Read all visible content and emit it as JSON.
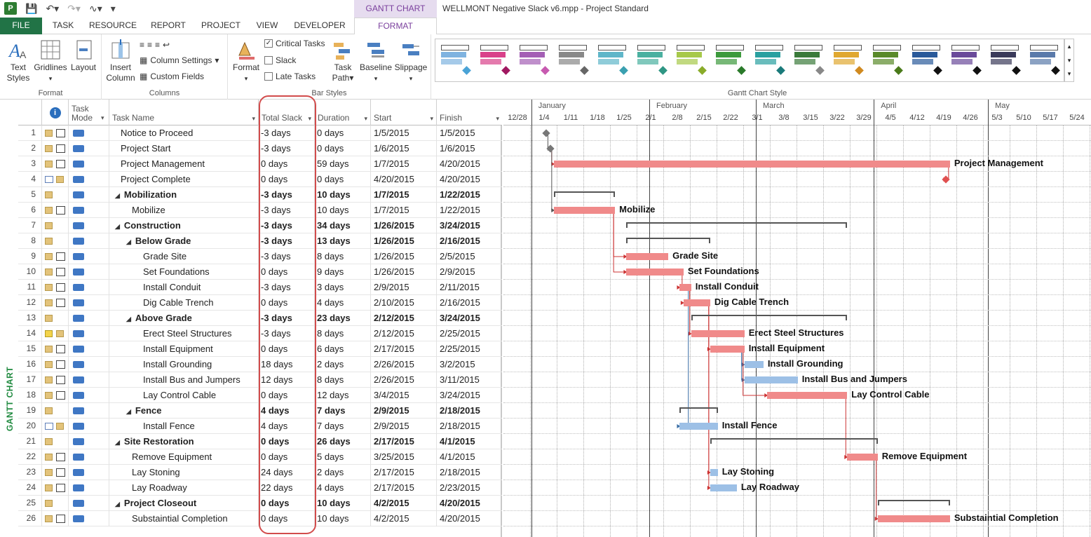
{
  "window": {
    "title": "WELLMONT Negative Slack v6.mpp - Project Standard",
    "context_tab_group": "GANTT CHART TOOLS"
  },
  "quick_access": {
    "app_icon": "P",
    "save_icon": "save-icon",
    "undo_icon": "undo-icon",
    "redo_icon": "redo-icon",
    "baseline_icon": "baseline-icon",
    "customize_icon": "customize-icon"
  },
  "tabs": [
    {
      "label": "FILE"
    },
    {
      "label": "TASK"
    },
    {
      "label": "RESOURCE"
    },
    {
      "label": "REPORT"
    },
    {
      "label": "PROJECT"
    },
    {
      "label": "VIEW"
    },
    {
      "label": "DEVELOPER"
    },
    {
      "label": "FORMAT"
    }
  ],
  "ribbon": {
    "format_group": {
      "label": "Format",
      "text_styles": "Text Styles",
      "gridlines": "Gridlines",
      "layout": "Layout"
    },
    "columns_group": {
      "label": "Columns",
      "insert_column": "Insert Column",
      "column_settings": "Column Settings",
      "custom_fields": "Custom Fields"
    },
    "bar_styles_group": {
      "label": "Bar Styles",
      "format": "Format",
      "critical_tasks": "Critical Tasks",
      "critical_tasks_checked": true,
      "slack": "Slack",
      "slack_checked": false,
      "late_tasks": "Late Tasks",
      "late_tasks_checked": false,
      "task_path": "Task Path",
      "baseline": "Baseline",
      "slippage": "Slippage"
    },
    "gantt_style_group": {
      "label": "Gantt Chart Style",
      "swatches": [
        {
          "color": "#7fb3e0",
          "accent": "#4aa3d6"
        },
        {
          "color": "#d9418a",
          "accent": "#a01860"
        },
        {
          "color": "#a45fb5",
          "accent": "#c75ab0"
        },
        {
          "color": "#888888",
          "accent": "#666666"
        },
        {
          "color": "#5fb6c9",
          "accent": "#3aa0b0"
        },
        {
          "color": "#4ab0a0",
          "accent": "#2f9684"
        },
        {
          "color": "#a7c94a",
          "accent": "#8aac2a"
        },
        {
          "color": "#3d9a3d",
          "accent": "#2a7a2a"
        },
        {
          "color": "#2aa0a0",
          "accent": "#1a7a7a"
        },
        {
          "color": "#3a7a3a",
          "accent": "#888888"
        },
        {
          "color": "#e0a830",
          "accent": "#d08a20"
        },
        {
          "color": "#5a8a2a",
          "accent": "#4a7a1a"
        },
        {
          "color": "#2a5a9a",
          "accent": "#111111"
        },
        {
          "color": "#6a4a9a",
          "accent": "#111111"
        },
        {
          "color": "#3a3a5a",
          "accent": "#111111"
        },
        {
          "color": "#5a7aaa",
          "accent": "#111111"
        }
      ]
    }
  },
  "side_label": "GANTT CHART",
  "grid": {
    "headers": {
      "indicators": "info-icon",
      "mode": "Task Mode",
      "name": "Task Name",
      "slack": "Total Slack",
      "duration": "Duration",
      "start": "Start",
      "finish": "Finish"
    },
    "rows": [
      {
        "id": "1",
        "name": "Notice to Proceed",
        "level": 0,
        "summary": false,
        "slack": "-3 days",
        "duration": "0 days",
        "start": "1/5/2015",
        "finish": "1/5/2015",
        "icons": [
          "note",
          "link"
        ]
      },
      {
        "id": "2",
        "name": "Project Start",
        "level": 0,
        "summary": false,
        "slack": "-3 days",
        "duration": "0 days",
        "start": "1/6/2015",
        "finish": "1/6/2015",
        "icons": [
          "note",
          "link"
        ]
      },
      {
        "id": "3",
        "name": "Project Management",
        "level": 0,
        "summary": false,
        "slack": "0 days",
        "duration": "59 days",
        "start": "1/7/2015",
        "finish": "4/20/2015",
        "icons": [
          "note",
          "link"
        ]
      },
      {
        "id": "4",
        "name": "Project Complete",
        "level": 0,
        "summary": false,
        "slack": "0 days",
        "duration": "0 days",
        "start": "4/20/2015",
        "finish": "4/20/2015",
        "icons": [
          "cal",
          "note"
        ]
      },
      {
        "id": "5",
        "name": "Mobilization",
        "level": 0,
        "summary": true,
        "slack": "-3 days",
        "duration": "10 days",
        "start": "1/7/2015",
        "finish": "1/22/2015",
        "icons": [
          "note"
        ]
      },
      {
        "id": "6",
        "name": "Mobilize",
        "level": 1,
        "summary": false,
        "slack": "-3 days",
        "duration": "10 days",
        "start": "1/7/2015",
        "finish": "1/22/2015",
        "icons": [
          "note",
          "link"
        ]
      },
      {
        "id": "7",
        "name": "Construction",
        "level": 0,
        "summary": true,
        "slack": "-3 days",
        "duration": "34 days",
        "start": "1/26/2015",
        "finish": "3/24/2015",
        "icons": [
          "note"
        ]
      },
      {
        "id": "8",
        "name": "Below Grade",
        "level": 1,
        "summary": true,
        "slack": "-3 days",
        "duration": "13 days",
        "start": "1/26/2015",
        "finish": "2/16/2015",
        "icons": [
          "note"
        ]
      },
      {
        "id": "9",
        "name": "Grade Site",
        "level": 2,
        "summary": false,
        "slack": "-3 days",
        "duration": "8 days",
        "start": "1/26/2015",
        "finish": "2/5/2015",
        "icons": [
          "note",
          "link"
        ]
      },
      {
        "id": "10",
        "name": "Set Foundations",
        "level": 2,
        "summary": false,
        "slack": "0 days",
        "duration": "9 days",
        "start": "1/26/2015",
        "finish": "2/9/2015",
        "icons": [
          "note",
          "link"
        ]
      },
      {
        "id": "11",
        "name": "Install Conduit",
        "level": 2,
        "summary": false,
        "slack": "-3 days",
        "duration": "3 days",
        "start": "2/9/2015",
        "finish": "2/11/2015",
        "icons": [
          "note",
          "link"
        ]
      },
      {
        "id": "12",
        "name": "Dig Cable Trench",
        "level": 2,
        "summary": false,
        "slack": "0 days",
        "duration": "4 days",
        "start": "2/10/2015",
        "finish": "2/16/2015",
        "icons": [
          "note",
          "link"
        ]
      },
      {
        "id": "13",
        "name": "Above Grade",
        "level": 1,
        "summary": true,
        "slack": "-3 days",
        "duration": "23 days",
        "start": "2/12/2015",
        "finish": "3/24/2015",
        "icons": [
          "note"
        ]
      },
      {
        "id": "14",
        "name": "Erect Steel Structures",
        "level": 2,
        "summary": false,
        "slack": "-3 days",
        "duration": "8 days",
        "start": "2/12/2015",
        "finish": "2/25/2015",
        "icons": [
          "warn",
          "note"
        ]
      },
      {
        "id": "15",
        "name": "Install Equipment",
        "level": 2,
        "summary": false,
        "slack": "0 days",
        "duration": "6 days",
        "start": "2/17/2015",
        "finish": "2/25/2015",
        "icons": [
          "note",
          "link"
        ]
      },
      {
        "id": "16",
        "name": "Install Grounding",
        "level": 2,
        "summary": false,
        "slack": "18 days",
        "duration": "2 days",
        "start": "2/26/2015",
        "finish": "3/2/2015",
        "icons": [
          "note",
          "link"
        ]
      },
      {
        "id": "17",
        "name": "Install Bus and Jumpers",
        "level": 2,
        "summary": false,
        "slack": "12 days",
        "duration": "8 days",
        "start": "2/26/2015",
        "finish": "3/11/2015",
        "icons": [
          "note",
          "link"
        ]
      },
      {
        "id": "18",
        "name": "Lay Control Cable",
        "level": 2,
        "summary": false,
        "slack": "0 days",
        "duration": "12 days",
        "start": "3/4/2015",
        "finish": "3/24/2015",
        "icons": [
          "note",
          "link"
        ]
      },
      {
        "id": "19",
        "name": "Fence",
        "level": 1,
        "summary": true,
        "slack": "4 days",
        "duration": "7 days",
        "start": "2/9/2015",
        "finish": "2/18/2015",
        "icons": [
          "note"
        ]
      },
      {
        "id": "20",
        "name": "Install Fence",
        "level": 2,
        "summary": false,
        "slack": "4 days",
        "duration": "7 days",
        "start": "2/9/2015",
        "finish": "2/18/2015",
        "icons": [
          "cal",
          "note"
        ]
      },
      {
        "id": "21",
        "name": "Site Restoration",
        "level": 0,
        "summary": true,
        "slack": "0 days",
        "duration": "26 days",
        "start": "2/17/2015",
        "finish": "4/1/2015",
        "icons": [
          "note"
        ]
      },
      {
        "id": "22",
        "name": "Remove Equipment",
        "level": 1,
        "summary": false,
        "slack": "0 days",
        "duration": "5 days",
        "start": "3/25/2015",
        "finish": "4/1/2015",
        "icons": [
          "note",
          "link"
        ]
      },
      {
        "id": "23",
        "name": "Lay Stoning",
        "level": 1,
        "summary": false,
        "slack": "24 days",
        "duration": "2 days",
        "start": "2/17/2015",
        "finish": "2/18/2015",
        "icons": [
          "note",
          "link"
        ]
      },
      {
        "id": "24",
        "name": "Lay Roadway",
        "level": 1,
        "summary": false,
        "slack": "22 days",
        "duration": "4 days",
        "start": "2/17/2015",
        "finish": "2/23/2015",
        "icons": [
          "note",
          "link"
        ]
      },
      {
        "id": "25",
        "name": "Project Closeout",
        "level": 0,
        "summary": true,
        "slack": "0 days",
        "duration": "10 days",
        "start": "4/2/2015",
        "finish": "4/20/2015",
        "icons": [
          "note"
        ]
      },
      {
        "id": "26",
        "name": "Substaintial Completion",
        "level": 1,
        "summary": false,
        "slack": "0 days",
        "duration": "10 days",
        "start": "4/2/2015",
        "finish": "4/20/2015",
        "icons": [
          "note",
          "link"
        ]
      }
    ]
  },
  "timescale": {
    "months": [
      "January",
      "February",
      "March",
      "April",
      "May"
    ],
    "weeks": [
      "12/28",
      "1/4",
      "1/11",
      "1/18",
      "1/25",
      "2/1",
      "2/8",
      "2/15",
      "2/22",
      "3/1",
      "3/8",
      "3/15",
      "3/22",
      "3/29",
      "4/5",
      "4/12",
      "4/19",
      "4/26",
      "5/3",
      "5/10",
      "5/17",
      "5/24"
    ]
  },
  "gantt_bars": [
    {
      "row": 1,
      "type": "milestone",
      "start": "1/5/2015"
    },
    {
      "row": 2,
      "type": "milestone",
      "start": "1/6/2015"
    },
    {
      "row": 3,
      "type": "critical",
      "start": "1/7/2015",
      "finish": "4/20/2015",
      "label": "Project Management"
    },
    {
      "row": 4,
      "type": "milestone-critical",
      "start": "4/20/2015"
    },
    {
      "row": 5,
      "type": "summary",
      "start": "1/7/2015",
      "finish": "1/22/2015"
    },
    {
      "row": 6,
      "type": "critical",
      "start": "1/7/2015",
      "finish": "1/22/2015",
      "label": "Mobilize"
    },
    {
      "row": 7,
      "type": "summary",
      "start": "1/26/2015",
      "finish": "3/24/2015"
    },
    {
      "row": 8,
      "type": "summary",
      "start": "1/26/2015",
      "finish": "2/16/2015"
    },
    {
      "row": 9,
      "type": "critical",
      "start": "1/26/2015",
      "finish": "2/5/2015",
      "label": "Grade Site"
    },
    {
      "row": 10,
      "type": "critical",
      "start": "1/26/2015",
      "finish": "2/9/2015",
      "label": "Set Foundations"
    },
    {
      "row": 11,
      "type": "critical",
      "start": "2/9/2015",
      "finish": "2/11/2015",
      "label": "Install Conduit"
    },
    {
      "row": 12,
      "type": "critical",
      "start": "2/10/2015",
      "finish": "2/16/2015",
      "label": "Dig Cable Trench"
    },
    {
      "row": 13,
      "type": "summary",
      "start": "2/12/2015",
      "finish": "3/24/2015"
    },
    {
      "row": 14,
      "type": "critical",
      "start": "2/12/2015",
      "finish": "2/25/2015",
      "label": "Erect Steel Structures"
    },
    {
      "row": 15,
      "type": "critical",
      "start": "2/17/2015",
      "finish": "2/25/2015",
      "label": "Install Equipment"
    },
    {
      "row": 16,
      "type": "normal",
      "start": "2/26/2015",
      "finish": "3/2/2015",
      "label": "Install Grounding"
    },
    {
      "row": 17,
      "type": "normal",
      "start": "2/26/2015",
      "finish": "3/11/2015",
      "label": "Install Bus and Jumpers"
    },
    {
      "row": 18,
      "type": "critical",
      "start": "3/4/2015",
      "finish": "3/24/2015",
      "label": "Lay Control Cable"
    },
    {
      "row": 19,
      "type": "summary",
      "start": "2/9/2015",
      "finish": "2/18/2015"
    },
    {
      "row": 20,
      "type": "normal",
      "start": "2/9/2015",
      "finish": "2/18/2015",
      "label": "Install Fence"
    },
    {
      "row": 21,
      "type": "summary",
      "start": "2/17/2015",
      "finish": "4/1/2015"
    },
    {
      "row": 22,
      "type": "critical",
      "start": "3/25/2015",
      "finish": "4/1/2015",
      "label": "Remove Equipment"
    },
    {
      "row": 23,
      "type": "normal",
      "start": "2/17/2015",
      "finish": "2/18/2015",
      "label": "Lay Stoning"
    },
    {
      "row": 24,
      "type": "normal",
      "start": "2/17/2015",
      "finish": "2/23/2015",
      "label": "Lay Roadway"
    },
    {
      "row": 25,
      "type": "summary",
      "start": "4/2/2015",
      "finish": "4/20/2015"
    },
    {
      "row": 26,
      "type": "critical",
      "start": "4/2/2015",
      "finish": "4/20/2015",
      "label": "Substaintial Completion"
    }
  ],
  "colors": {
    "critical_bar": "#f08a8a",
    "normal_bar": "#9dc0e6",
    "file_tab": "#217346",
    "format_tab": "#7a3f9d",
    "highlight": "#d24c4c"
  }
}
